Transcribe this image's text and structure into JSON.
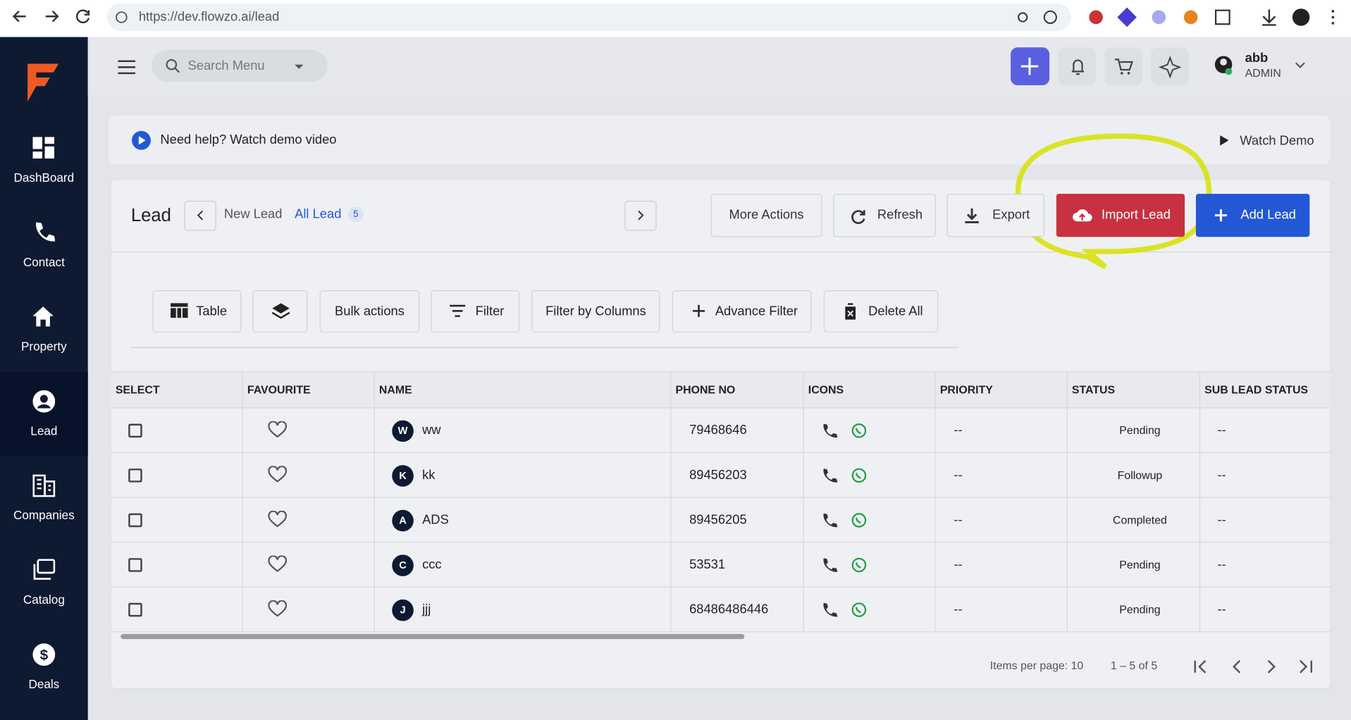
{
  "browser": {
    "url": "https://dev.flowzo.ai/lead"
  },
  "sidebar": {
    "items": [
      "DashBoard",
      "Contact",
      "Property",
      "Lead",
      "Companies",
      "Catalog",
      "Deals"
    ]
  },
  "header": {
    "search_placeholder": "Search Menu",
    "user_name": "abb",
    "user_role": "ADMIN"
  },
  "help_banner": {
    "text": "Need help? Watch demo video",
    "link": "Watch Demo"
  },
  "toolbar": {
    "title": "Lead",
    "tabs": [
      "New Lead",
      "All Lead"
    ],
    "count": "5",
    "buttons": [
      "More Actions",
      "Refresh",
      "Export",
      "Import Lead",
      "Add Lead"
    ]
  },
  "filters": [
    "Table",
    "Bulk actions",
    "Filter",
    "Filter by Columns",
    "Advance Filter",
    "Delete All"
  ],
  "table": {
    "columns": [
      "SELECT",
      "FAVOURITE",
      "NAME",
      "PHONE NO",
      "ICONS",
      "PRIORITY",
      "STATUS",
      "SUB LEAD STATUS"
    ],
    "rows": [
      {
        "initial": "W",
        "name": "ww",
        "phone": "79468646",
        "priority": "--",
        "status": "Pending",
        "sub_status": "--"
      },
      {
        "initial": "K",
        "name": "kk",
        "phone": "89456203",
        "priority": "--",
        "status": "Followup",
        "sub_status": "--"
      },
      {
        "initial": "A",
        "name": "ADS",
        "phone": "89456205",
        "priority": "--",
        "status": "Completed",
        "sub_status": "--"
      },
      {
        "initial": "C",
        "name": "ccc",
        "phone": "53531",
        "priority": "--",
        "status": "Pending",
        "sub_status": "--"
      },
      {
        "initial": "J",
        "name": "jjj",
        "phone": "68486486446",
        "priority": "--",
        "status": "Pending",
        "sub_status": "--"
      }
    ]
  },
  "pagination": {
    "items_per_page": "Items per page: 10",
    "range": "1 – 5 of 5"
  }
}
